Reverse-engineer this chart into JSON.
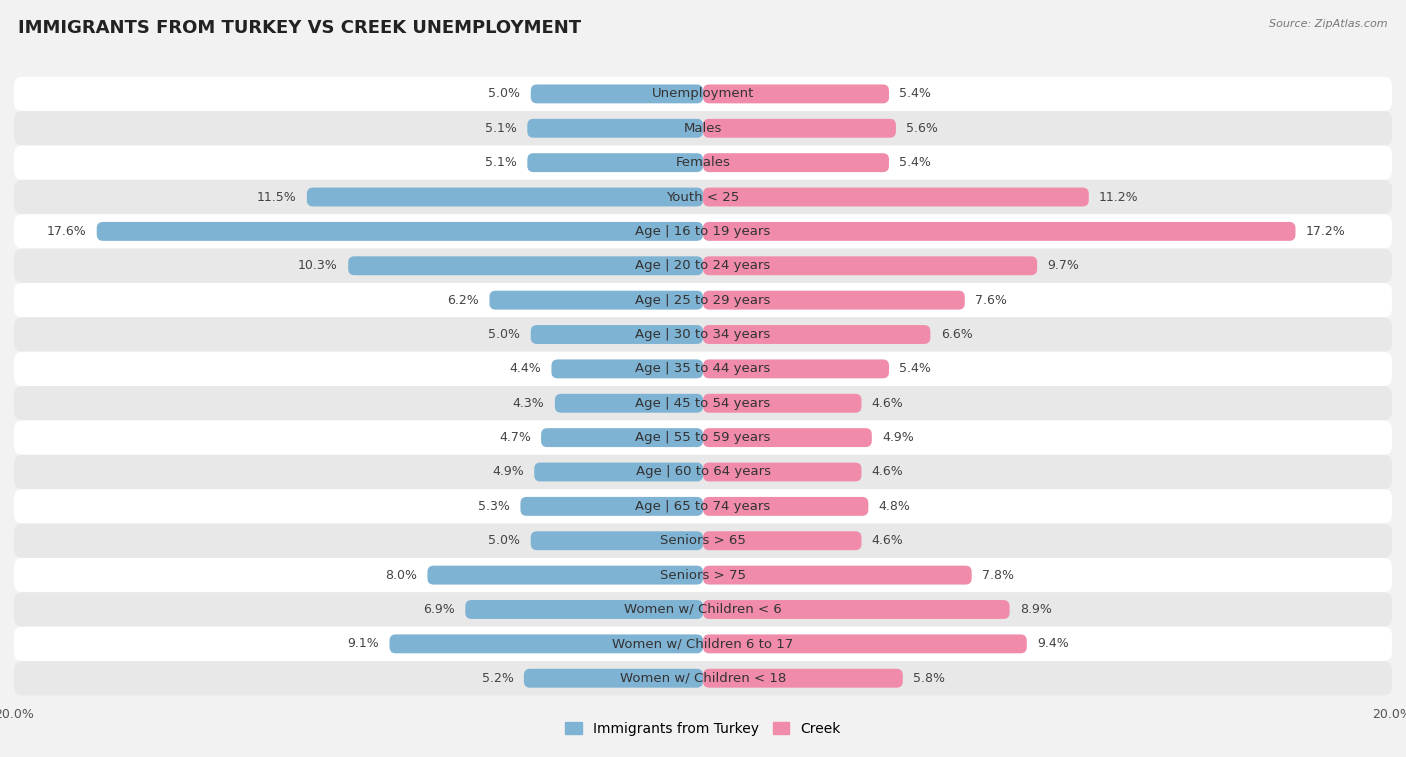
{
  "title": "IMMIGRANTS FROM TURKEY VS CREEK UNEMPLOYMENT",
  "source": "Source: ZipAtlas.com",
  "categories": [
    "Unemployment",
    "Males",
    "Females",
    "Youth < 25",
    "Age | 16 to 19 years",
    "Age | 20 to 24 years",
    "Age | 25 to 29 years",
    "Age | 30 to 34 years",
    "Age | 35 to 44 years",
    "Age | 45 to 54 years",
    "Age | 55 to 59 years",
    "Age | 60 to 64 years",
    "Age | 65 to 74 years",
    "Seniors > 65",
    "Seniors > 75",
    "Women w/ Children < 6",
    "Women w/ Children 6 to 17",
    "Women w/ Children < 18"
  ],
  "left_values": [
    5.0,
    5.1,
    5.1,
    11.5,
    17.6,
    10.3,
    6.2,
    5.0,
    4.4,
    4.3,
    4.7,
    4.9,
    5.3,
    5.0,
    8.0,
    6.9,
    9.1,
    5.2
  ],
  "right_values": [
    5.4,
    5.6,
    5.4,
    11.2,
    17.2,
    9.7,
    7.6,
    6.6,
    5.4,
    4.6,
    4.9,
    4.6,
    4.8,
    4.6,
    7.8,
    8.9,
    9.4,
    5.8
  ],
  "left_color": "#7fb3d3",
  "right_color": "#f08caa",
  "left_label": "Immigrants from Turkey",
  "right_label": "Creek",
  "max_val": 20.0,
  "background_color": "#f2f2f2",
  "row_colors_odd": "#ffffff",
  "row_colors_even": "#e8e8e8",
  "title_fontsize": 13,
  "cat_fontsize": 9.5,
  "value_fontsize": 9,
  "axis_label_fontsize": 9,
  "legend_fontsize": 10
}
